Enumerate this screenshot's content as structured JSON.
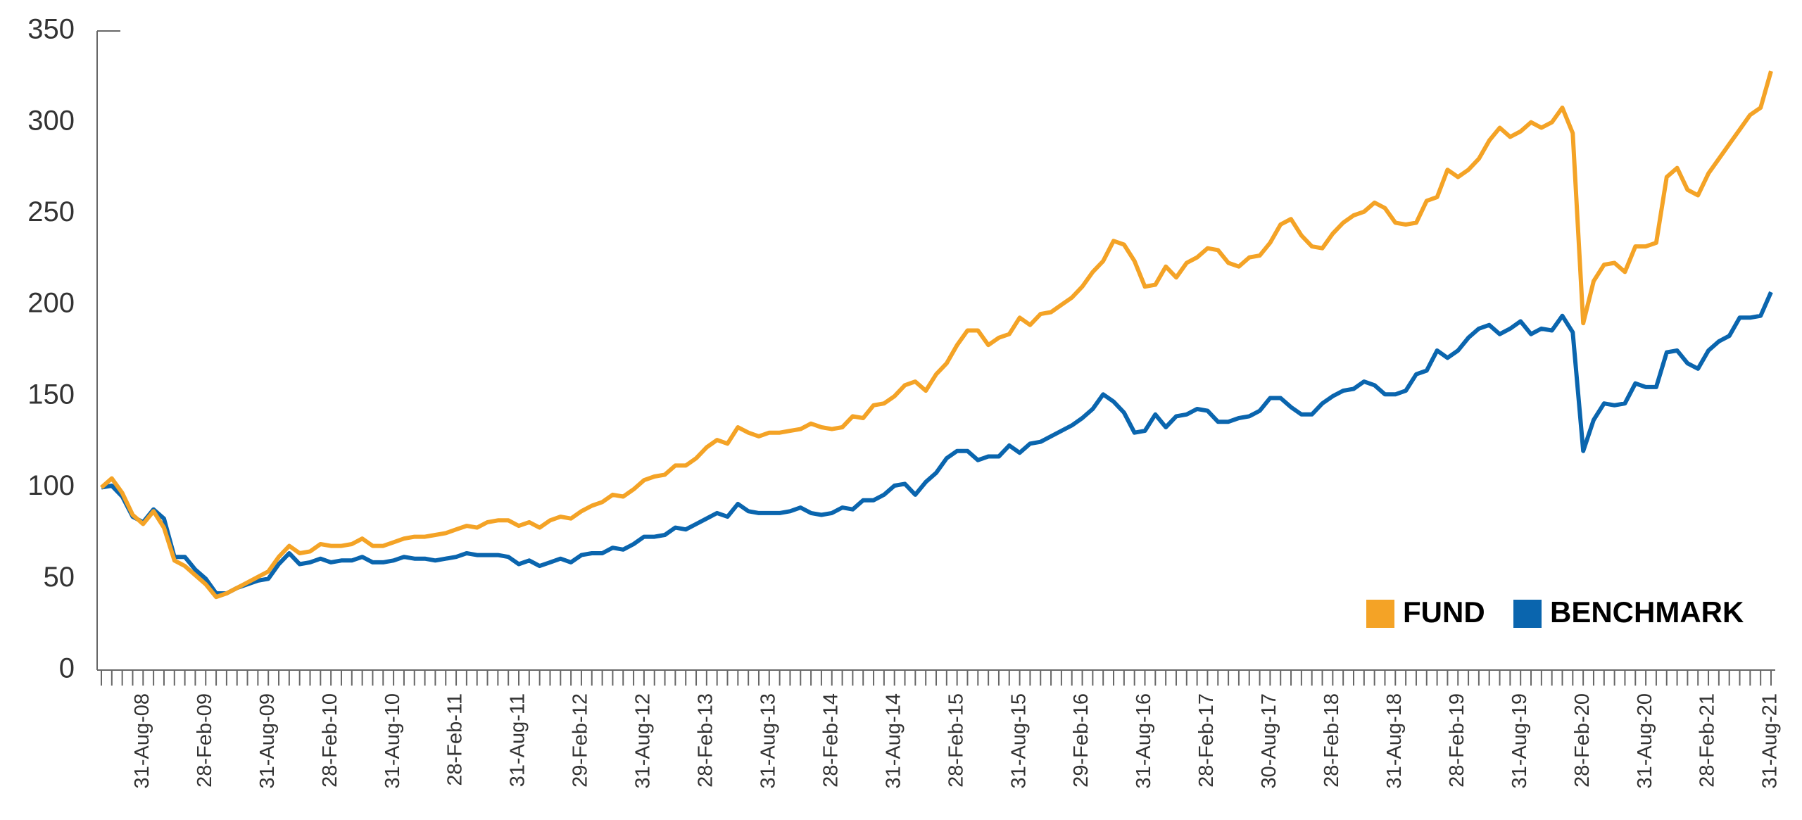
{
  "chart_data": {
    "type": "line",
    "categories": [
      null,
      null,
      null,
      null,
      "31-Aug-08",
      null,
      null,
      null,
      null,
      null,
      "28-Feb-09",
      null,
      null,
      null,
      null,
      null,
      "31-Aug-09",
      null,
      null,
      null,
      null,
      null,
      "28-Feb-10",
      null,
      null,
      null,
      null,
      null,
      "31-Aug-10",
      null,
      null,
      null,
      null,
      null,
      "28-Feb-11",
      null,
      null,
      null,
      null,
      null,
      "31-Aug-11",
      null,
      null,
      null,
      null,
      null,
      "29-Feb-12",
      null,
      null,
      null,
      null,
      null,
      "31-Aug-12",
      null,
      null,
      null,
      null,
      null,
      "28-Feb-13",
      null,
      null,
      null,
      null,
      null,
      "31-Aug-13",
      null,
      null,
      null,
      null,
      null,
      "28-Feb-14",
      null,
      null,
      null,
      null,
      null,
      "31-Aug-14",
      null,
      null,
      null,
      null,
      null,
      "28-Feb-15",
      null,
      null,
      null,
      null,
      null,
      "31-Aug-15",
      null,
      null,
      null,
      null,
      null,
      "29-Feb-16",
      null,
      null,
      null,
      null,
      null,
      "31-Aug-16",
      null,
      null,
      null,
      null,
      null,
      "28-Feb-17",
      null,
      null,
      null,
      null,
      null,
      "30-Aug-17",
      null,
      null,
      null,
      null,
      null,
      "28-Feb-18",
      null,
      null,
      null,
      null,
      null,
      "31-Aug-18",
      null,
      null,
      null,
      null,
      null,
      "28-Feb-19",
      null,
      null,
      null,
      null,
      null,
      "31-Aug-19",
      null,
      null,
      null,
      null,
      null,
      "28-Feb-20",
      null,
      null,
      null,
      null,
      null,
      "31-Aug-20",
      null,
      null,
      null,
      null,
      null,
      "28-Feb-21",
      null,
      null,
      null,
      null,
      null,
      "31-Aug-21"
    ],
    "series": [
      {
        "name": "FUND",
        "color": "#f4a326",
        "values": [
          100,
          105,
          97,
          85,
          80,
          87,
          78,
          60,
          57,
          52,
          47,
          40,
          42,
          45,
          48,
          51,
          54,
          62,
          68,
          64,
          65,
          69,
          68,
          68,
          69,
          72,
          68,
          68,
          70,
          72,
          73,
          73,
          74,
          75,
          77,
          79,
          78,
          81,
          82,
          82,
          79,
          81,
          78,
          82,
          84,
          83,
          87,
          90,
          92,
          96,
          95,
          99,
          104,
          106,
          107,
          112,
          112,
          116,
          122,
          126,
          124,
          133,
          130,
          128,
          130,
          130,
          131,
          132,
          135,
          133,
          132,
          133,
          139,
          138,
          145,
          146,
          150,
          156,
          158,
          153,
          162,
          168,
          178,
          186,
          186,
          178,
          182,
          184,
          193,
          189,
          195,
          196,
          200,
          204,
          210,
          218,
          224,
          235,
          233,
          224,
          210,
          211,
          221,
          215,
          223,
          226,
          231,
          230,
          223,
          221,
          226,
          227,
          234,
          244,
          247,
          238,
          232,
          231,
          239,
          245,
          249,
          251,
          256,
          253,
          245,
          244,
          245,
          257,
          259,
          274,
          270,
          274,
          280,
          290,
          297,
          292,
          295,
          300,
          297,
          300,
          308,
          294,
          190,
          213,
          222,
          223,
          218,
          232,
          232,
          234,
          270,
          275,
          263,
          260,
          272,
          280,
          288,
          296,
          304,
          308,
          328
        ]
      },
      {
        "name": "BENCHMARK",
        "color": "#0a65ae",
        "values": [
          100,
          101,
          95,
          84,
          81,
          88,
          83,
          62,
          62,
          55,
          50,
          42,
          42,
          45,
          47,
          49,
          50,
          58,
          64,
          58,
          59,
          61,
          59,
          60,
          60,
          62,
          59,
          59,
          60,
          62,
          61,
          61,
          60,
          61,
          62,
          64,
          63,
          63,
          63,
          62,
          58,
          60,
          57,
          59,
          61,
          59,
          63,
          64,
          64,
          67,
          66,
          69,
          73,
          73,
          74,
          78,
          77,
          80,
          83,
          86,
          84,
          91,
          87,
          86,
          86,
          86,
          87,
          89,
          86,
          85,
          86,
          89,
          88,
          93,
          93,
          96,
          101,
          102,
          96,
          103,
          108,
          116,
          120,
          120,
          115,
          117,
          117,
          123,
          119,
          124,
          125,
          128,
          131,
          134,
          138,
          143,
          151,
          147,
          141,
          130,
          131,
          140,
          133,
          139,
          140,
          143,
          142,
          136,
          136,
          138,
          139,
          142,
          149,
          149,
          144,
          140,
          140,
          146,
          150,
          153,
          154,
          158,
          156,
          151,
          151,
          153,
          162,
          164,
          175,
          171,
          175,
          182,
          187,
          189,
          184,
          187,
          191,
          184,
          187,
          186,
          194,
          185,
          120,
          137,
          146,
          145,
          146,
          157,
          155,
          155,
          174,
          175,
          168,
          165,
          175,
          180,
          183,
          193,
          193,
          194,
          207
        ]
      }
    ],
    "ylim": [
      0,
      350
    ],
    "yticks": [
      0,
      50,
      100,
      150,
      200,
      250,
      300,
      350
    ],
    "grid": false
  }
}
